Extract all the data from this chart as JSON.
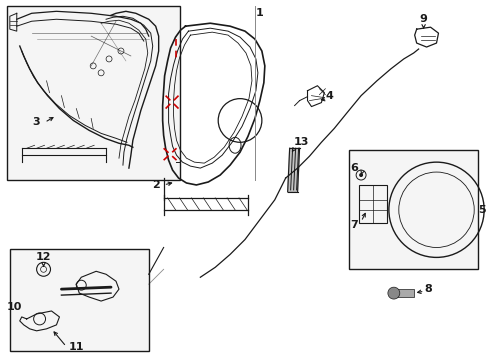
{
  "bg": "#ffffff",
  "lc": "#1a1a1a",
  "rc": "#cc0000",
  "gc": "#888888",
  "figsize": [
    4.89,
    3.6
  ],
  "dpi": 100
}
